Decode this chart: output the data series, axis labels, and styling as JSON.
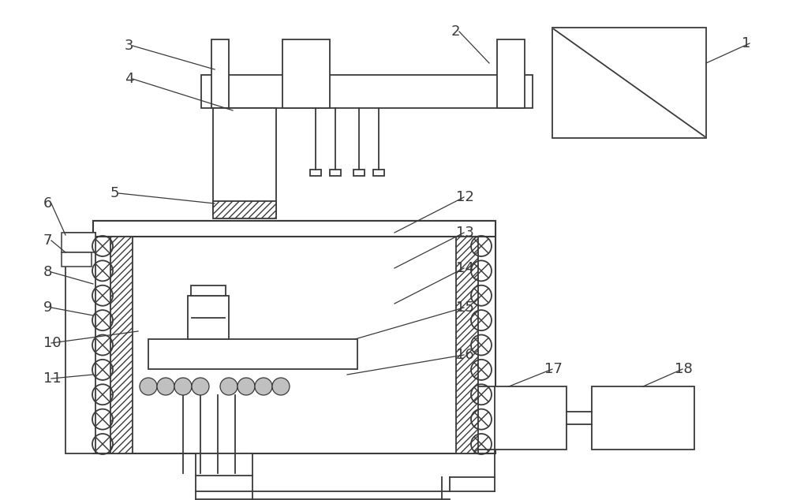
{
  "bg_color": "#ffffff",
  "line_color": "#3a3a3a",
  "fig_width": 10.0,
  "fig_height": 6.34,
  "label_fontsize": 13,
  "lw": 1.3
}
